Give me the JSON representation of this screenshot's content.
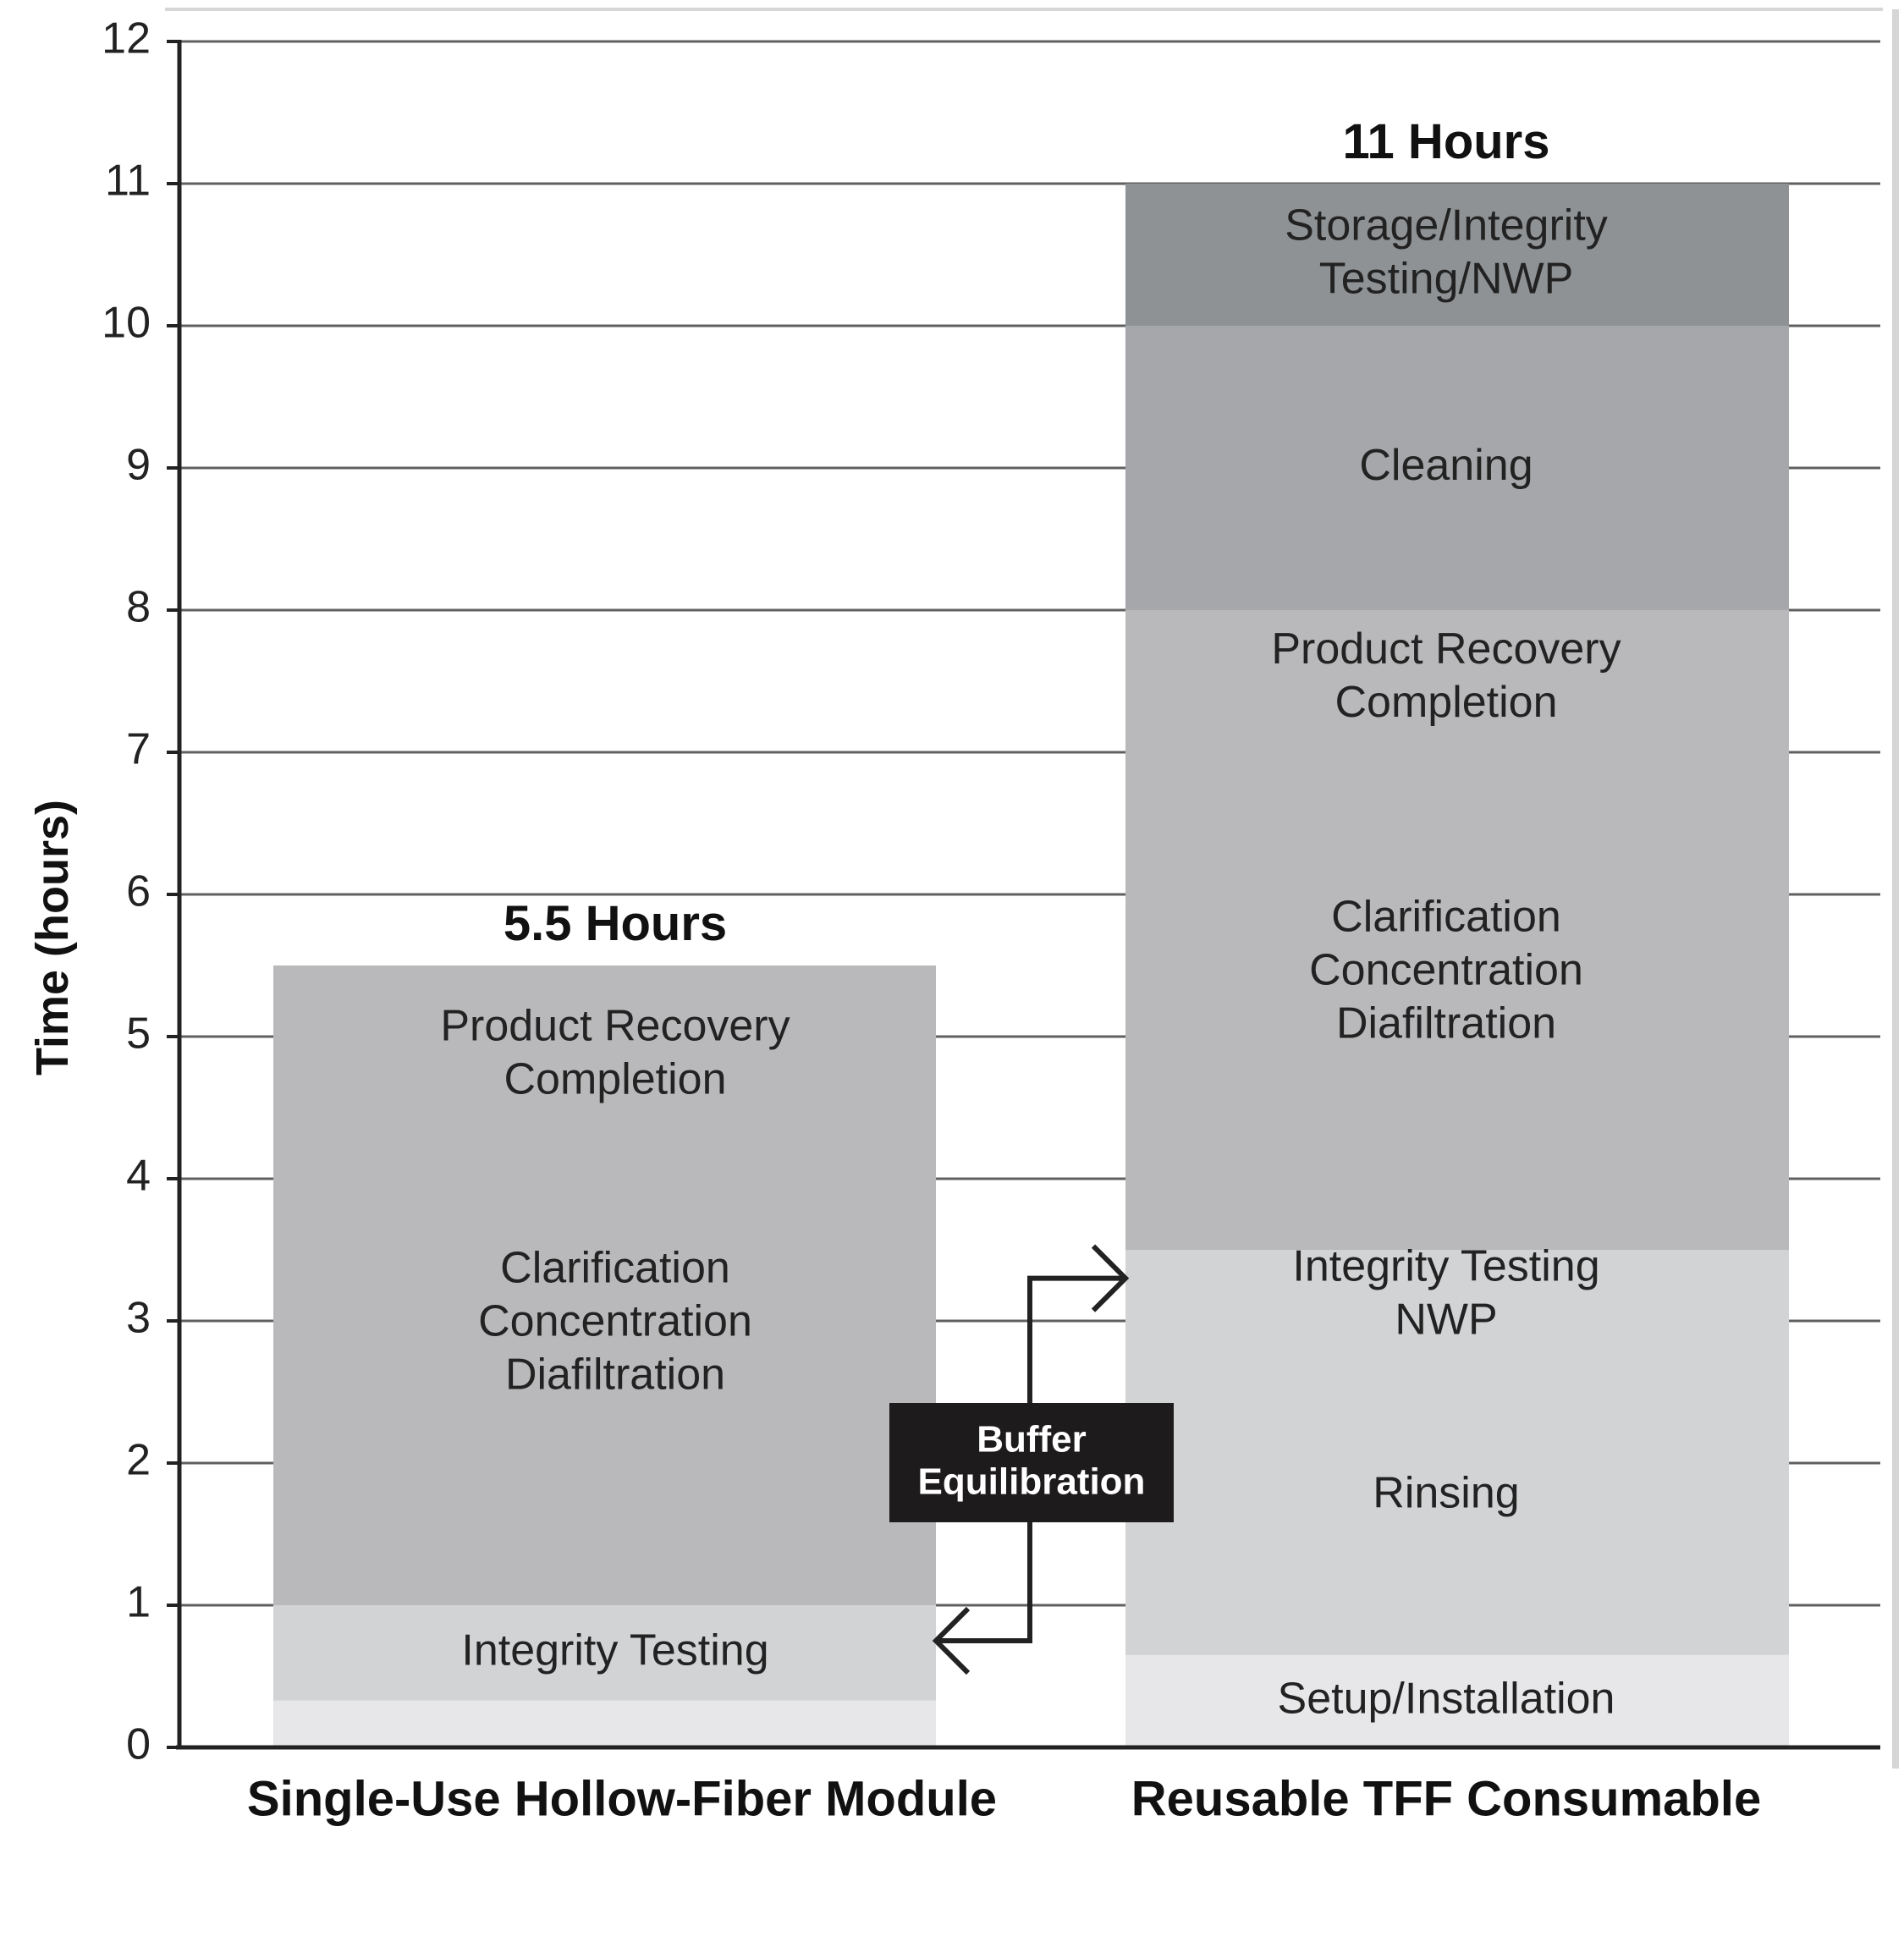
{
  "chart_data": {
    "type": "bar",
    "stacked": true,
    "ylabel": "Time (hours)",
    "ylim": [
      0,
      12
    ],
    "yticks": [
      0,
      1,
      2,
      3,
      4,
      5,
      6,
      7,
      8,
      9,
      10,
      11,
      12
    ],
    "grid": true,
    "categories": [
      "Single-Use Hollow-Fiber Module",
      "Reusable TFF Consumable"
    ],
    "totals_labels": [
      "5.5 Hours",
      "11 Hours"
    ],
    "stacks": [
      {
        "category": "Single-Use Hollow-Fiber Module",
        "segments": [
          {
            "label": "",
            "start": 0,
            "end": 0.33,
            "color": "#e7e7e9"
          },
          {
            "label": "Integrity Testing",
            "start": 0.33,
            "end": 1.0,
            "color": "#d2d3d5"
          },
          {
            "label": "Clarification\nConcentration\nDiafiltration",
            "start": 1.0,
            "end": 5.5,
            "color": "#b9b9bb",
            "label_center": 2.98
          },
          {
            "label": "Product Recovery\nCompletion",
            "start": 1.0,
            "end": 5.5,
            "color": "#b9b9bb",
            "label_center": 4.87,
            "overlay_label": true
          }
        ]
      },
      {
        "category": "Reusable TFF Consumable",
        "segments": [
          {
            "label": "Setup/Installation",
            "start": 0,
            "end": 0.65,
            "color": "#e7e7e9"
          },
          {
            "label": "Rinsing",
            "start": 0.65,
            "end": 2.0,
            "color": "#d2d3d5",
            "label_center": 1.77
          },
          {
            "label": "Integrity Testing\nNWP",
            "start": 2.0,
            "end": 3.5,
            "color": "#d2d3d5",
            "label_center": 3.18,
            "seamless": true
          },
          {
            "label": "Clarification\nConcentration\nDiafiltration",
            "start": 3.5,
            "end": 8.0,
            "color": "#b9b9bb",
            "label_center": 5.45
          },
          {
            "label": "Product Recovery\nCompletion",
            "start": 3.5,
            "end": 8.0,
            "color": "#b9b9bb",
            "label_center": 7.52,
            "overlay_label": true
          },
          {
            "label": "Cleaning",
            "start": 8.0,
            "end": 10.0,
            "color": "#a6a7aa"
          },
          {
            "label": "Storage/Integrity\nTesting/NWP",
            "start": 10.0,
            "end": 11.0,
            "color": "#8f9294"
          }
        ]
      }
    ],
    "annotation": {
      "label": "Buffer\nEquilibration",
      "from_category": "Reusable TFF Consumable",
      "from_y": 3.3,
      "to_category": "Single-Use Hollow-Fiber Module",
      "to_y": 0.75
    }
  }
}
